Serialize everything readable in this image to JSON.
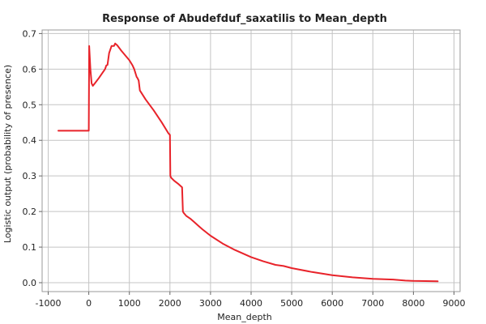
{
  "chart_data": {
    "type": "line",
    "title": "Response of Abudefduf_saxatilis to Mean_depth",
    "xlabel": "Mean_depth",
    "ylabel": "Logistic output (probability of presence)",
    "xlim": [
      -1150,
      9150
    ],
    "ylim": [
      -0.025,
      0.71
    ],
    "xticks": [
      -1000,
      0,
      1000,
      2000,
      3000,
      4000,
      5000,
      6000,
      7000,
      8000,
      9000
    ],
    "xtick_labels": [
      "-1000",
      "0",
      "1000",
      "2000",
      "3000",
      "4000",
      "5000",
      "6000",
      "7000",
      "8000",
      "9000"
    ],
    "yticks": [
      0.0,
      0.1,
      0.2,
      0.3,
      0.4,
      0.5,
      0.6,
      0.7
    ],
    "ytick_labels": [
      "0.0",
      "0.1",
      "0.2",
      "0.3",
      "0.4",
      "0.5",
      "0.6",
      "0.7"
    ],
    "grid": true,
    "legend": "none",
    "series": [
      {
        "color": "#e8232a",
        "x": [
          -750,
          -20,
          0,
          10,
          40,
          70,
          100,
          150,
          250,
          400,
          430,
          460,
          500,
          560,
          620,
          650,
          700,
          800,
          1000,
          1080,
          1120,
          1180,
          1200,
          1230,
          1260,
          1400,
          1600,
          1800,
          1960,
          2000,
          2010,
          2030,
          2100,
          2200,
          2300,
          2320,
          2340,
          2400,
          2500,
          2600,
          2700,
          2800,
          3000,
          3300,
          3600,
          4000,
          4300,
          4600,
          4800,
          5000,
          5500,
          6000,
          6500,
          7000,
          7500,
          7800,
          8000,
          8600
        ],
        "y": [
          0.427,
          0.427,
          0.427,
          0.665,
          0.6,
          0.56,
          0.553,
          0.56,
          0.575,
          0.6,
          0.61,
          0.612,
          0.645,
          0.665,
          0.665,
          0.672,
          0.667,
          0.652,
          0.625,
          0.61,
          0.6,
          0.578,
          0.575,
          0.568,
          0.54,
          0.515,
          0.484,
          0.45,
          0.42,
          0.415,
          0.3,
          0.295,
          0.287,
          0.278,
          0.268,
          0.2,
          0.196,
          0.188,
          0.18,
          0.17,
          0.16,
          0.15,
          0.132,
          0.11,
          0.092,
          0.072,
          0.06,
          0.05,
          0.047,
          0.041,
          0.03,
          0.021,
          0.015,
          0.011,
          0.009,
          0.006,
          0.005,
          0.004
        ]
      }
    ]
  }
}
